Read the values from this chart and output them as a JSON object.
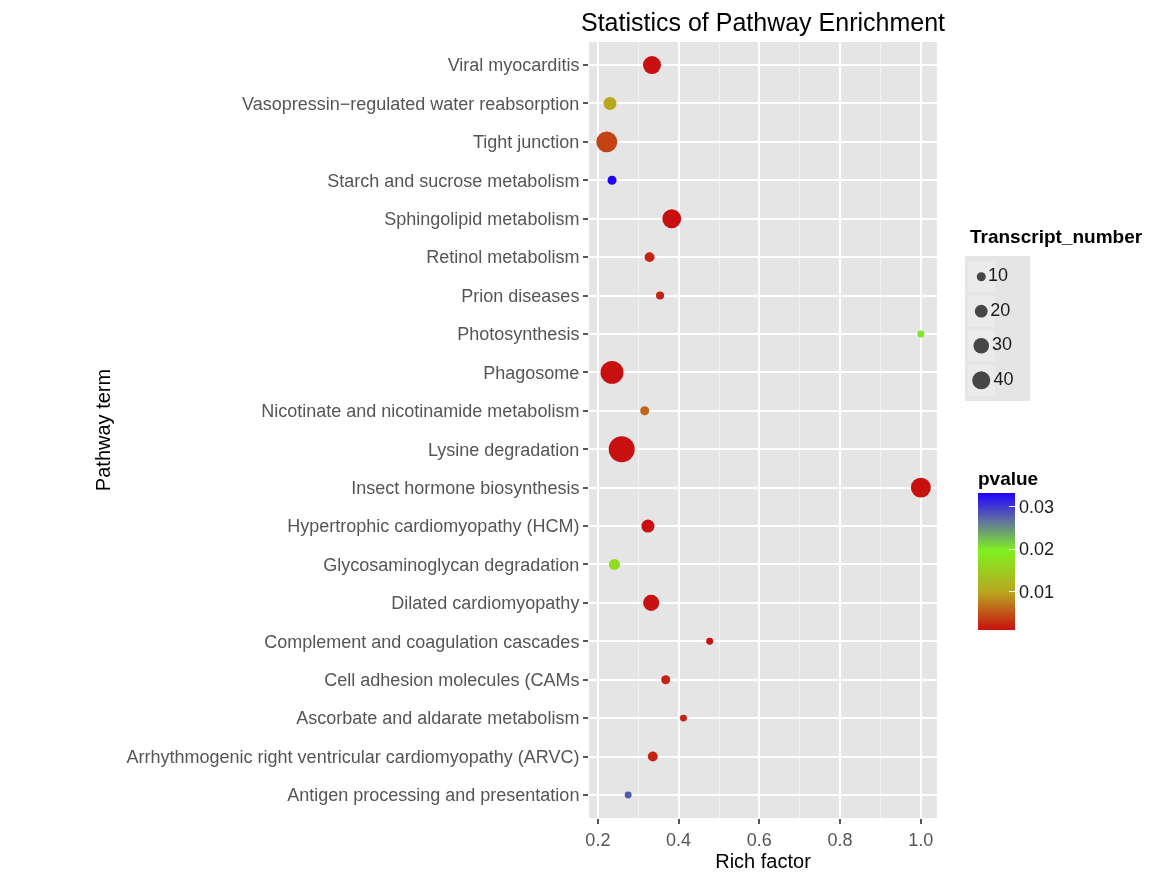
{
  "chart_data": {
    "type": "bubble",
    "title": "Statistics of Pathway Enrichment",
    "xlabel": "Rich factor",
    "ylabel": "Pathway term",
    "legend_title": "Transcript_number",
    "clabel": "pvalue",
    "orientation": "horizontal",
    "categories": [
      "Viral myocarditis",
      "Vasopressin−regulated water reabsorption",
      "Tight junction",
      "Starch and sucrose metabolism",
      "Sphingolipid metabolism",
      "Retinol metabolism",
      "Prion diseases",
      "Photosynthesis",
      "Phagosome",
      "Nicotinate and nicotinamide metabolism",
      "Lysine degradation",
      "Insect hormone biosynthesis",
      "Hypertrophic cardiomyopathy (HCM)",
      "Glycosaminoglycan degradation",
      "Dilated cardiomyopathy",
      "Complement and coagulation cascades",
      "Cell adhesion molecules (CAMs",
      "Ascorbate and aldarate metabolism",
      "Arrhythmogenic right ventricular cardiomyopathy (ARVC)",
      "Antigen processing and presentation"
    ],
    "series": [
      {
        "values": [
          0.334,
          0.23,
          0.222,
          0.235,
          0.383,
          0.328,
          0.354,
          1.0,
          0.235,
          0.316,
          0.259,
          1.0,
          0.324,
          0.241,
          0.332,
          0.477,
          0.368,
          0.412,
          0.336,
          0.275
        ],
        "sizes": [
          40,
          21,
          54,
          10,
          44,
          12,
          8,
          6,
          65,
          10,
          83,
          49,
          21,
          15,
          32,
          6,
          10,
          6,
          12,
          6
        ],
        "cvalues": [
          0.001,
          0.01,
          0.004,
          0.033,
          0.001,
          0.002,
          0.002,
          0.02,
          0.001,
          0.006,
          0.001,
          0.001,
          0.001,
          0.017,
          0.001,
          0.001,
          0.002,
          0.002,
          0.002,
          0.028
        ]
      }
    ],
    "size_legend": [
      10,
      20,
      30,
      40
    ],
    "clim": [
      0.001,
      0.033
    ],
    "cticks": [
      0.01,
      0.02,
      0.03
    ],
    "xlim": [
      0.178,
      1.04
    ],
    "xticks": [
      {
        "value": 0.2,
        "label": "0.2"
      },
      {
        "value": 0.4,
        "label": "0.4"
      },
      {
        "value": 0.6,
        "label": "0.6"
      },
      {
        "value": 0.8,
        "label": "0.8"
      },
      {
        "value": 1.0,
        "label": "1.0"
      }
    ],
    "grid": true,
    "marker": "circle"
  }
}
